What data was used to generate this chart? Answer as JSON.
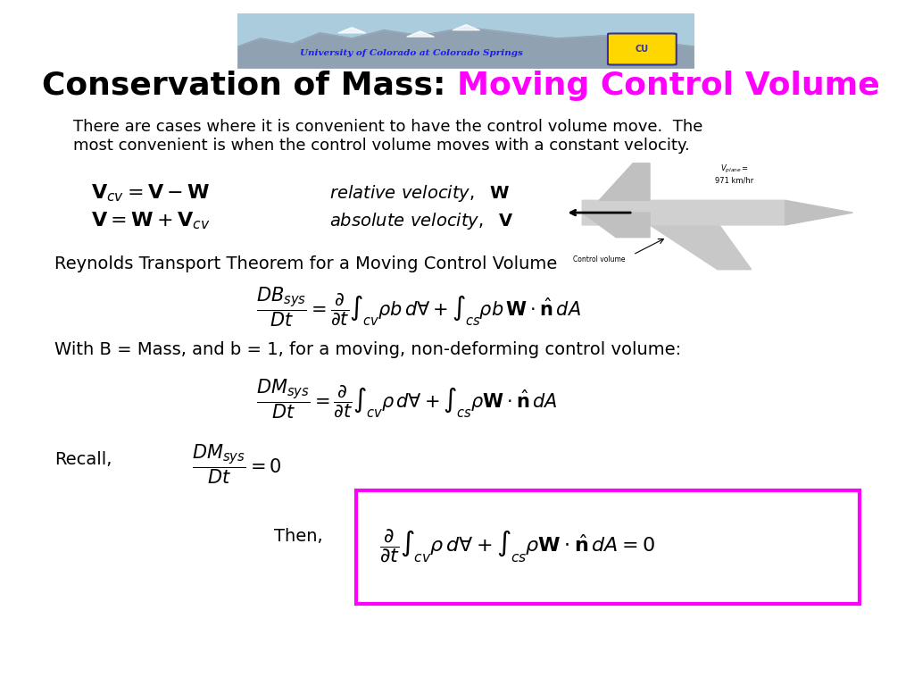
{
  "title_black": "Conservation of Mass: ",
  "title_magenta": "Moving Control Volume",
  "title_fontsize": 26,
  "bg_color": "#ffffff",
  "text_color": "#000000",
  "magenta_color": "#ff00ff",
  "body_text1": "There are cases where it is convenient to have the control volume move.  The",
  "body_text2": "most convenient is when the control volume moves with a constant velocity.",
  "eq1_label": "relative velocity,  W",
  "eq2_label": "absolute velocity,  V",
  "reynolds_header": "Reynolds Transport Theorem for a Moving Control Volume",
  "with_b_text": "With B = Mass, and b = 1, for a moving, non-deforming control volume:",
  "recall_text": "Recall,",
  "then_text": "Then,"
}
